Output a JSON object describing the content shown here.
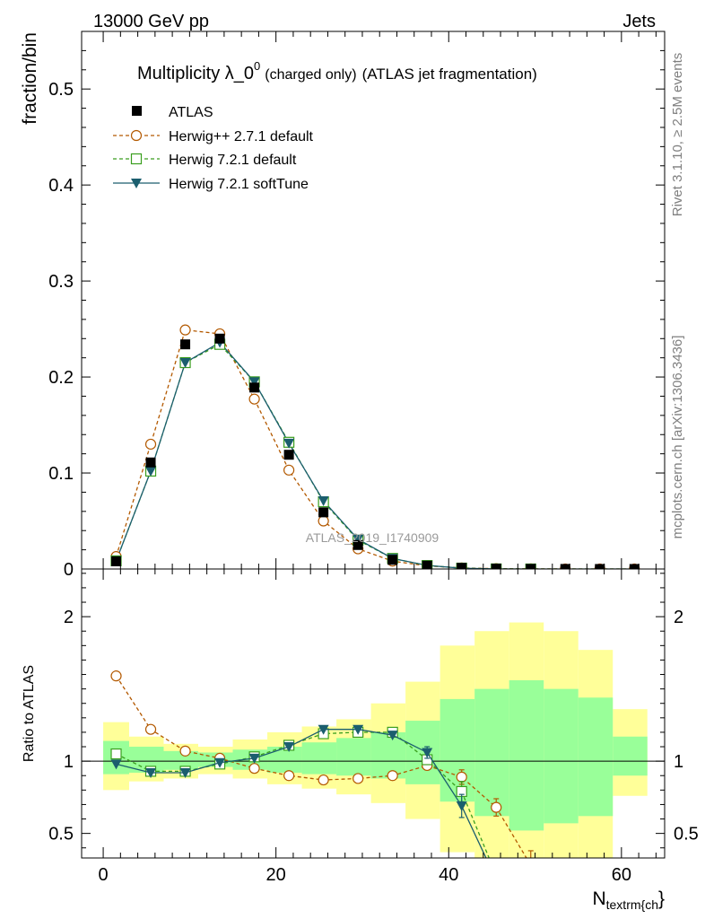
{
  "header": {
    "left": "13000 GeV pp",
    "right": "Jets"
  },
  "side_labels": {
    "rivet": "Rivet 3.1.10, ≥ 2.5M events",
    "mcplots": "mcplots.cern.ch [arXiv:1306.3436]"
  },
  "watermark": "ATLAS_2019_I1740909",
  "chart_data": {
    "type": "scatter",
    "title": {
      "main": "Multiplicity λ_0",
      "sup": "0",
      "small": "(charged only)",
      "rest": "(ATLAS jet fragmentation)"
    },
    "xlabel": {
      "main": "N",
      "sub": "textrm{ch",
      "close": "}"
    },
    "ylabel": "fraction/bin",
    "ratio_ylabel": "Ratio to ATLAS",
    "xlim": [
      -2.5,
      65
    ],
    "ylim": [
      0,
      0.56
    ],
    "ratio_ylim": [
      0.33,
      2.33
    ],
    "x_ticks": [
      "0",
      "20",
      "40",
      "60"
    ],
    "y_ticks": [
      "0",
      "0.1",
      "0.2",
      "0.3",
      "0.4",
      "0.5"
    ],
    "ratio_ticks": [
      "0.5",
      "1",
      "2"
    ],
    "legend_position": "top-left",
    "x": [
      1.5,
      5.5,
      9.5,
      13.5,
      17.5,
      21.5,
      25.5,
      29.5,
      33.5,
      37.5,
      41.5,
      45.5,
      49.5,
      53.5,
      57.5,
      61.5
    ],
    "bin_edges": [
      0,
      3,
      7,
      11,
      15,
      19,
      23,
      27,
      31,
      35,
      39,
      43,
      47,
      51,
      55,
      59,
      63
    ],
    "reference": {
      "name": "ATLAS",
      "color": "#000000",
      "values": [
        0.008,
        0.111,
        0.234,
        0.24,
        0.189,
        0.119,
        0.059,
        0.025,
        0.0095,
        0.0035,
        0.0012,
        0.0004,
        0.00015,
        5e-05,
        2e-05,
        1e-05
      ],
      "band_inner": [
        [
          0.91,
          1.14
        ],
        [
          0.92,
          1.1
        ],
        [
          0.94,
          1.07
        ],
        [
          0.96,
          1.06
        ],
        [
          0.94,
          1.08
        ],
        [
          0.92,
          1.1
        ],
        [
          0.91,
          1.13
        ],
        [
          0.9,
          1.16
        ],
        [
          0.88,
          1.2
        ],
        [
          0.84,
          1.28
        ],
        [
          0.72,
          1.43
        ],
        [
          0.62,
          1.5
        ],
        [
          0.52,
          1.56
        ],
        [
          0.57,
          1.5
        ],
        [
          0.62,
          1.44
        ],
        [
          0.9,
          1.17
        ]
      ],
      "band_outer": [
        [
          0.8,
          1.27
        ],
        [
          0.86,
          1.17
        ],
        [
          0.88,
          1.12
        ],
        [
          0.91,
          1.1
        ],
        [
          0.88,
          1.15
        ],
        [
          0.84,
          1.2
        ],
        [
          0.81,
          1.24
        ],
        [
          0.77,
          1.29
        ],
        [
          0.71,
          1.4
        ],
        [
          0.6,
          1.55
        ],
        [
          0.37,
          1.8
        ],
        [
          0.33,
          1.9
        ],
        [
          0.33,
          1.96
        ],
        [
          0.33,
          1.9
        ],
        [
          0.33,
          1.77
        ],
        [
          0.76,
          1.36
        ]
      ]
    },
    "series": [
      {
        "name": "Herwig++ 2.7.1 default",
        "color": "#b35900",
        "marker": "circle-open",
        "line": "dashed",
        "values": [
          0.013,
          0.13,
          0.249,
          0.245,
          0.177,
          0.103,
          0.05,
          0.021,
          0.0082,
          0.0032,
          0.0011,
          0.00037,
          0.00013,
          4e-05,
          2e-05,
          1e-05
        ],
        "ratio": [
          1.59,
          1.22,
          1.07,
          1.02,
          0.95,
          0.9,
          0.87,
          0.88,
          0.9,
          0.97,
          0.89,
          0.68,
          0.28,
          0.15,
          0.1,
          0.05
        ],
        "ratio_err": [
          0.01,
          0.01,
          0.01,
          0.01,
          0.01,
          0.01,
          0.01,
          0.01,
          0.01,
          0.02,
          0.05,
          0.06,
          0.1,
          0.08,
          0.05,
          0.03
        ]
      },
      {
        "name": "Herwig 7.2.1 default",
        "color": "#3a9e1e",
        "marker": "square-open",
        "line": "dashed",
        "values": [
          0.0085,
          0.102,
          0.215,
          0.234,
          0.195,
          0.132,
          0.07,
          0.03,
          0.011,
          0.0036,
          0.0009,
          0.0001,
          1e-05,
          0.0,
          0.0,
          0.0
        ],
        "ratio": [
          1.05,
          0.93,
          0.93,
          0.98,
          1.03,
          1.11,
          1.19,
          1.2,
          1.2,
          1.01,
          0.79,
          0.21,
          0.05,
          0.01,
          0.0,
          0.0
        ],
        "ratio_err": [
          0.01,
          0.01,
          0.01,
          0.01,
          0.01,
          0.01,
          0.01,
          0.01,
          0.01,
          0.03,
          0.07,
          0.08,
          0.04,
          0.01,
          0.0,
          0.0
        ]
      },
      {
        "name": "Herwig 7.2.1 softTune",
        "color": "#1b5e6e",
        "marker": "triangle-down",
        "line": "solid",
        "values": [
          0.0085,
          0.102,
          0.215,
          0.236,
          0.195,
          0.131,
          0.071,
          0.031,
          0.011,
          0.0037,
          0.0008,
          0.0001,
          1e-05,
          0.0,
          0.0,
          0.0
        ],
        "ratio": [
          0.98,
          0.92,
          0.92,
          0.99,
          1.02,
          1.1,
          1.22,
          1.22,
          1.18,
          1.06,
          0.69,
          0.18,
          0.05,
          0.01,
          0.0,
          0.0
        ],
        "ratio_err": [
          0.01,
          0.01,
          0.01,
          0.01,
          0.01,
          0.01,
          0.01,
          0.01,
          0.01,
          0.04,
          0.08,
          0.08,
          0.04,
          0.01,
          0.0,
          0.0
        ]
      }
    ]
  }
}
